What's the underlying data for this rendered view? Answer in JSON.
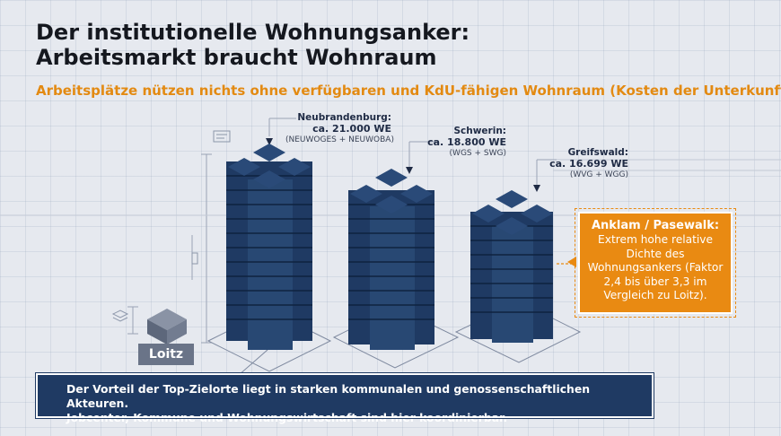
{
  "title": {
    "line1": "Der institutionelle Wohnungsanker:",
    "line2": "Arbeitsmarkt braucht Wohnraum"
  },
  "subtitle": "Arbeitsplätze nützen nichts ohne verfügbaren und KdU-fähigen Wohnraum (Kosten der Unterkunft).",
  "locations": [
    {
      "city": "Neubrandenburg:",
      "count": "ca. 21.000 WE",
      "orgs": "(NEUWOGES + NEUWOBA)"
    },
    {
      "city": "Schwerin:",
      "count": "ca. 18.800 WE",
      "orgs": "(WGS + SWG)"
    },
    {
      "city": "Greifswald:",
      "count": "ca. 16.699 WE",
      "orgs": "(WVG + WGG)"
    }
  ],
  "callout": {
    "title": "Anklam / Pasewalk:",
    "body": "Extrem hohe relative Dichte des Wohnungsankers (Faktor 2,4 bis über 3,3 im Vergleich zu Loitz)."
  },
  "loitz_label": "Loitz",
  "footer": {
    "line1": "Der Vorteil der Top-Zielorte liegt in starken kommunalen und genossenschaftlichen Akteuren.",
    "line2": "Jobcenter, Kommune und Wohnungswirtschaft sind hier koordinierbar."
  },
  "colors": {
    "accent_orange": "#e38a12",
    "building_navy": "#1f3a63",
    "footer_navy": "#1f3a63",
    "loitz_gray": "#6a7488"
  },
  "icons": [
    "document-icon",
    "stack-icon",
    "dimension-marker-icon"
  ]
}
